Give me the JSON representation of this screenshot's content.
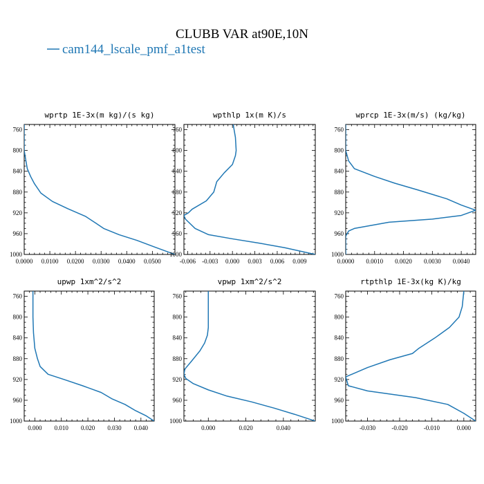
{
  "figure": {
    "title": "CLUBB VAR at90E,10N",
    "legend": [
      {
        "label": "cam144_lscale_pmf_a1test",
        "color": "#1f77b4"
      }
    ]
  },
  "chart_data": [
    {
      "type": "line",
      "title": "wprtp  1E-3x(m kg)/(s kg)",
      "xlim": [
        0,
        0.0588
      ],
      "ylim": [
        750,
        1000
      ],
      "yticks": [
        760,
        800,
        840,
        880,
        920,
        960,
        1000
      ],
      "xticks": [
        {
          "v": 0,
          "label": "0.0000"
        },
        {
          "v": 0.01,
          "label": "0.0100"
        },
        {
          "v": 0.02,
          "label": "0.0200"
        },
        {
          "v": 0.03,
          "label": "0.0300"
        },
        {
          "v": 0.04,
          "label": "0.0400"
        },
        {
          "v": 0.05,
          "label": "0.0500"
        }
      ],
      "series": [
        {
          "color": "#1f77b4",
          "x": [
            0,
            0,
            0.0005,
            0.0012,
            0.0025,
            0.004,
            0.0065,
            0.011,
            0.017,
            0.024,
            0.028,
            0.031,
            0.037,
            0.044,
            0.051,
            0.0588
          ],
          "y": [
            750,
            800,
            815,
            835,
            850,
            864,
            882,
            898,
            912,
            927,
            940,
            950,
            962,
            973,
            986,
            1000
          ]
        }
      ]
    },
    {
      "type": "line",
      "title": "wpthlp  1x(m K)/s",
      "xlim": [
        -0.0065,
        0.0111
      ],
      "ylim": [
        750,
        1000
      ],
      "yticks": [
        760,
        800,
        840,
        880,
        920,
        960,
        1000
      ],
      "xticks": [
        {
          "v": -0.006,
          "label": "-0.006"
        },
        {
          "v": -0.003,
          "label": "-0.003"
        },
        {
          "v": 0,
          "label": "0.000"
        },
        {
          "v": 0.003,
          "label": "0.003"
        },
        {
          "v": 0.006,
          "label": "0.006"
        },
        {
          "v": 0.009,
          "label": "0.009"
        }
      ],
      "series": [
        {
          "color": "#1f77b4",
          "x": [
            0.0001,
            0.0004,
            0.0005,
            0.0004,
            0.0,
            -0.0011,
            -0.0021,
            -0.0025,
            -0.0035,
            -0.0054,
            -0.0059,
            -0.0065,
            -0.0063,
            -0.005,
            -0.0032,
            0.0,
            0.0035,
            0.007,
            0.0111
          ],
          "y": [
            750,
            775,
            800,
            810,
            827,
            843,
            860,
            880,
            897,
            913,
            920,
            925,
            932,
            950,
            962,
            970,
            978,
            987,
            1000
          ]
        }
      ]
    },
    {
      "type": "line",
      "title": "wprcp  1E-3x(m/s) (kg/kg)",
      "xlim": [
        0,
        0.0045
      ],
      "ylim": [
        750,
        1000
      ],
      "yticks": [
        760,
        800,
        840,
        880,
        920,
        960,
        1000
      ],
      "xticks": [
        {
          "v": 0,
          "label": "0.0000"
        },
        {
          "v": 0.001,
          "label": "0.0010"
        },
        {
          "v": 0.002,
          "label": "0.0020"
        },
        {
          "v": 0.003,
          "label": "0.0030"
        },
        {
          "v": 0.004,
          "label": "0.0040"
        }
      ],
      "series": [
        {
          "color": "#1f77b4",
          "x": [
            0,
            0,
            0.0001,
            0.0003,
            0.001,
            0.0017,
            0.0025,
            0.0035,
            0.004,
            0.0045,
            0.004,
            0.003,
            0.0015,
            0.0003,
            0.0001,
            0,
            0
          ],
          "y": [
            750,
            800,
            820,
            835,
            850,
            863,
            876,
            893,
            905,
            915,
            925,
            932,
            938,
            950,
            955,
            965,
            1000
          ]
        }
      ]
    },
    {
      "type": "line",
      "title": "upwp  1xm^2/s^2",
      "xlim": [
        -0.004,
        0.045
      ],
      "ylim": [
        750,
        1000
      ],
      "yticks": [
        760,
        800,
        840,
        880,
        920,
        960,
        1000
      ],
      "xticks": [
        {
          "v": 0,
          "label": "0.000"
        },
        {
          "v": 0.01,
          "label": "0.010"
        },
        {
          "v": 0.02,
          "label": "0.020"
        },
        {
          "v": 0.03,
          "label": "0.030"
        },
        {
          "v": 0.04,
          "label": "0.040"
        }
      ],
      "series": [
        {
          "color": "#1f77b4",
          "x": [
            -0.0007,
            -0.0007,
            -0.0005,
            0.0,
            0.001,
            0.002,
            0.005,
            0.011,
            0.018,
            0.025,
            0.029,
            0.034,
            0.038,
            0.042,
            0.045
          ],
          "y": [
            750,
            800,
            830,
            860,
            880,
            895,
            910,
            920,
            932,
            945,
            957,
            968,
            980,
            990,
            1000
          ]
        }
      ]
    },
    {
      "type": "line",
      "title": "vpwp  1xm^2/s^2",
      "xlim": [
        -0.013,
        0.057
      ],
      "ylim": [
        750,
        1000
      ],
      "yticks": [
        760,
        800,
        840,
        880,
        920,
        960,
        1000
      ],
      "xticks": [
        {
          "v": 0,
          "label": "0.000"
        },
        {
          "v": 0.02,
          "label": "0.020"
        },
        {
          "v": 0.04,
          "label": "0.040"
        }
      ],
      "series": [
        {
          "color": "#1f77b4",
          "x": [
            0.0,
            0.0,
            -0.0005,
            -0.002,
            -0.0045,
            -0.009,
            -0.0125,
            -0.013,
            -0.012,
            -0.008,
            0.0,
            0.01,
            0.023,
            0.035,
            0.046,
            0.057
          ],
          "y": [
            750,
            820,
            835,
            850,
            865,
            885,
            900,
            910,
            918,
            928,
            940,
            952,
            963,
            975,
            987,
            1000
          ]
        }
      ]
    },
    {
      "type": "line",
      "title": "rtpthlp  1E-3x(kg K)/kg",
      "xlim": [
        -0.0368,
        0.0037
      ],
      "ylim": [
        750,
        1000
      ],
      "yticks": [
        760,
        800,
        840,
        880,
        920,
        960,
        1000
      ],
      "xticks": [
        {
          "v": -0.03,
          "label": "-0.030"
        },
        {
          "v": -0.02,
          "label": "-0.020"
        },
        {
          "v": -0.01,
          "label": "-0.010"
        },
        {
          "v": 0,
          "label": "0.000"
        }
      ],
      "series": [
        {
          "color": "#1f77b4",
          "x": [
            0.0,
            -0.0005,
            -0.0015,
            -0.0045,
            -0.009,
            -0.014,
            -0.016,
            -0.023,
            -0.03,
            -0.0368,
            -0.036,
            -0.03,
            -0.015,
            -0.005,
            0.0,
            0.0037
          ],
          "y": [
            750,
            780,
            800,
            820,
            840,
            860,
            870,
            882,
            897,
            915,
            932,
            942,
            955,
            968,
            985,
            1000
          ]
        }
      ]
    }
  ]
}
